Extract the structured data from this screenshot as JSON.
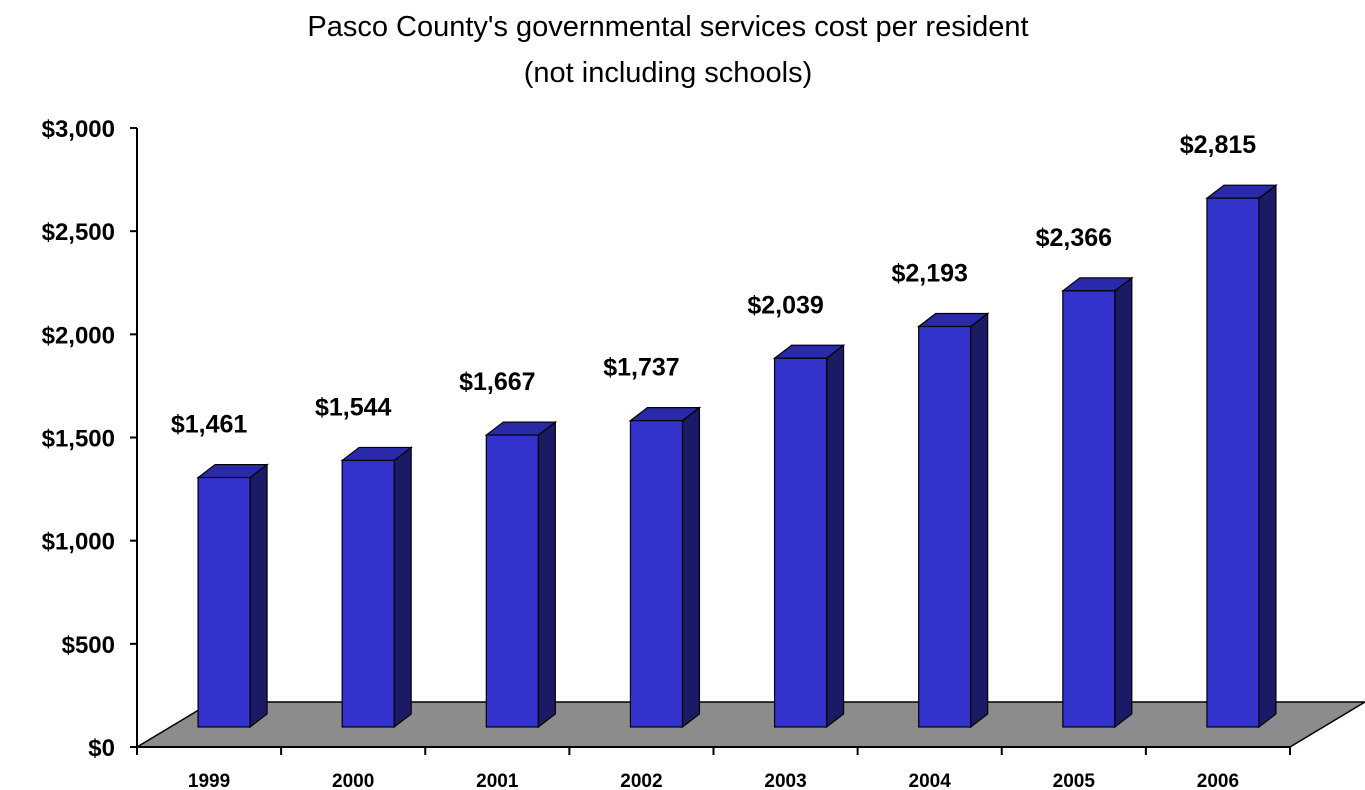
{
  "chart_data": {
    "type": "bar",
    "title": "Pasco County's governmental services cost per resident",
    "subtitle": "(not including schools)",
    "categories": [
      "1999",
      "2000",
      "2001",
      "2002",
      "2003",
      "2004",
      "2005",
      "2006"
    ],
    "values": [
      1461,
      1544,
      1667,
      1737,
      2039,
      2193,
      2366,
      2815
    ],
    "data_labels": [
      "$1,461",
      "$1,544",
      "$1,667",
      "$1,737",
      "$2,039",
      "$2,193",
      "$2,366",
      "$2,815"
    ],
    "y_ticks": [
      0,
      500,
      1000,
      1500,
      2000,
      2500,
      3000
    ],
    "y_tick_labels": [
      "$0",
      "$500",
      "$1,000",
      "$1,500",
      "$2,000",
      "$2,500",
      "$3,000"
    ],
    "ylim": [
      0,
      3000
    ],
    "xlabel": "",
    "ylabel": "",
    "grid": false,
    "legend": "none",
    "style": "3d-column",
    "colors": {
      "bar_front": "#3333cc",
      "bar_side": "#1a1a66",
      "bar_top": "#2a2aa8",
      "floor": "#8c8c8c",
      "outline": "#000000"
    }
  }
}
